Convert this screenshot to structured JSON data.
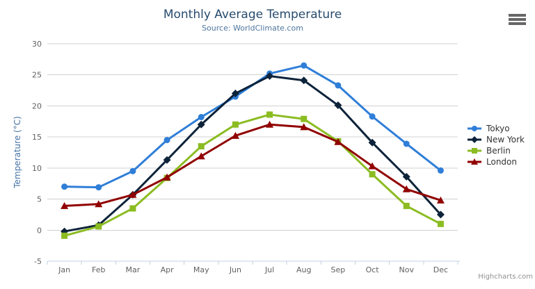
{
  "header": {
    "title": "Monthly Average Temperature",
    "subtitle": "Source: WorldClimate.com"
  },
  "credits": {
    "label": "Highcharts.com"
  },
  "colors": {
    "title": "#274b6d",
    "subtitle": "#4d759e",
    "axis_title": "#4572a7",
    "axis_labels": "#606060",
    "gridline": "#d1d1d1",
    "axis_line": "#c0d0e0",
    "legend_text": "#333333"
  },
  "chart_data": {
    "type": "line",
    "title": "Monthly Average Temperature",
    "subtitle": "Source: WorldClimate.com",
    "xlabel": "",
    "ylabel": "Temperature (°C)",
    "categories": [
      "Jan",
      "Feb",
      "Mar",
      "Apr",
      "May",
      "Jun",
      "Jul",
      "Aug",
      "Sep",
      "Oct",
      "Nov",
      "Dec"
    ],
    "series": [
      {
        "name": "Tokyo",
        "color": "#2f7ed8",
        "marker": "circle",
        "values": [
          7.0,
          6.9,
          9.5,
          14.5,
          18.2,
          21.5,
          25.2,
          26.5,
          23.3,
          18.3,
          13.9,
          9.6
        ]
      },
      {
        "name": "New York",
        "color": "#0d233a",
        "marker": "diamond",
        "values": [
          -0.2,
          0.8,
          5.7,
          11.3,
          17.0,
          22.0,
          24.8,
          24.1,
          20.1,
          14.1,
          8.6,
          2.5
        ]
      },
      {
        "name": "Berlin",
        "color": "#8bbc21",
        "marker": "square",
        "values": [
          -0.9,
          0.6,
          3.5,
          8.4,
          13.5,
          17.0,
          18.6,
          17.9,
          14.3,
          9.0,
          3.9,
          1.0
        ]
      },
      {
        "name": "London",
        "color": "#910000",
        "marker": "triangle",
        "values": [
          3.9,
          4.2,
          5.7,
          8.5,
          11.9,
          15.2,
          17.0,
          16.6,
          14.2,
          10.3,
          6.6,
          4.8
        ]
      }
    ],
    "ylim": [
      -5,
      30
    ],
    "yticks": [
      -5,
      0,
      5,
      10,
      15,
      20,
      25,
      30
    ],
    "grid": true,
    "legend_position": "right"
  }
}
